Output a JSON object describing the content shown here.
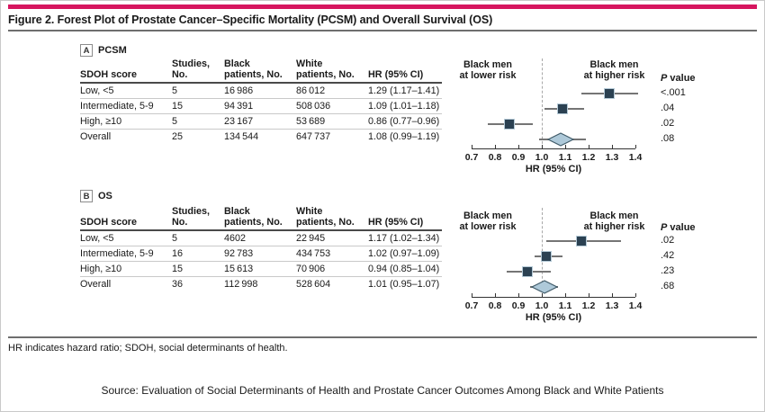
{
  "figure": {
    "title": "Figure 2. Forest Plot of Prostate Cancer–Specific Mortality (PCSM) and Overall Survival (OS)",
    "footnote": "HR indicates hazard ratio; SDOH, social determinants of health.",
    "source": "Source: Evaluation of Social Determinants of Health and Prostate Cancer Outcomes Among Black and White Patients"
  },
  "colors": {
    "accent": "#d6155f",
    "marker": "#2b4152",
    "marker_border": "#b5cad7",
    "ci_line": "#757575",
    "diamond_fill": "#aec9d9",
    "diamond_stroke": "#3f5a68",
    "ref_line": "#a8a8a8",
    "axis": "#333333"
  },
  "table_headers": [
    "SDOH score",
    "Studies,\nNo.",
    "Black\npatients, No.",
    "White\npatients, No.",
    "HR (95% CI)"
  ],
  "plot_labels": {
    "left": "Black men\nat lower risk",
    "right": "Black men\nat higher risk",
    "p_header_italic": "P",
    "p_header_rest": " value"
  },
  "chart_data": [
    {
      "type": "forest",
      "panel": "A",
      "panel_title": "PCSM",
      "axis": {
        "min": 0.7,
        "max": 1.4,
        "ticks": [
          0.7,
          0.8,
          0.9,
          1.0,
          1.1,
          1.2,
          1.3,
          1.4
        ],
        "ref": 1.0,
        "label": "HR (95% CI)"
      },
      "rows": [
        {
          "label": "Low, <5",
          "studies": "5",
          "black": "16 986",
          "white": "86 012",
          "hr_ci": "1.29 (1.17–1.41)",
          "hr": 1.29,
          "lo": 1.17,
          "hi": 1.41,
          "p": "<.001",
          "marker": "square"
        },
        {
          "label": "Intermediate, 5-9",
          "studies": "15",
          "black": "94 391",
          "white": "508 036",
          "hr_ci": "1.09 (1.01–1.18)",
          "hr": 1.09,
          "lo": 1.01,
          "hi": 1.18,
          "p": ".04",
          "marker": "square"
        },
        {
          "label": "High, ≥10",
          "studies": "5",
          "black": "23 167",
          "white": "53 689",
          "hr_ci": "0.86 (0.77–0.96)",
          "hr": 0.86,
          "lo": 0.77,
          "hi": 0.96,
          "p": ".02",
          "marker": "square"
        },
        {
          "label": "Overall",
          "studies": "25",
          "black": "134 544",
          "white": "647 737",
          "hr_ci": "1.08 (0.99–1.19)",
          "hr": 1.08,
          "lo": 0.99,
          "hi": 1.19,
          "p": ".08",
          "marker": "diamond"
        }
      ]
    },
    {
      "type": "forest",
      "panel": "B",
      "panel_title": "OS",
      "axis": {
        "min": 0.7,
        "max": 1.4,
        "ticks": [
          0.7,
          0.8,
          0.9,
          1.0,
          1.1,
          1.2,
          1.3,
          1.4
        ],
        "ref": 1.0,
        "label": "HR (95% CI)"
      },
      "rows": [
        {
          "label": "Low, <5",
          "studies": "5",
          "black": "4602",
          "white": "22 945",
          "hr_ci": "1.17 (1.02–1.34)",
          "hr": 1.17,
          "lo": 1.02,
          "hi": 1.34,
          "p": ".02",
          "marker": "square"
        },
        {
          "label": "Intermediate, 5-9",
          "studies": "16",
          "black": "92 783",
          "white": "434 753",
          "hr_ci": "1.02 (0.97–1.09)",
          "hr": 1.02,
          "lo": 0.97,
          "hi": 1.09,
          "p": ".42",
          "marker": "square"
        },
        {
          "label": "High, ≥10",
          "studies": "15",
          "black": "15 613",
          "white": "70 906",
          "hr_ci": "0.94 (0.85–1.04)",
          "hr": 0.94,
          "lo": 0.85,
          "hi": 1.04,
          "p": ".23",
          "marker": "square"
        },
        {
          "label": "Overall",
          "studies": "36",
          "black": "112 998",
          "white": "528 604",
          "hr_ci": "1.01 (0.95–1.07)",
          "hr": 1.01,
          "lo": 0.95,
          "hi": 1.07,
          "p": ".68",
          "marker": "diamond"
        }
      ]
    }
  ]
}
